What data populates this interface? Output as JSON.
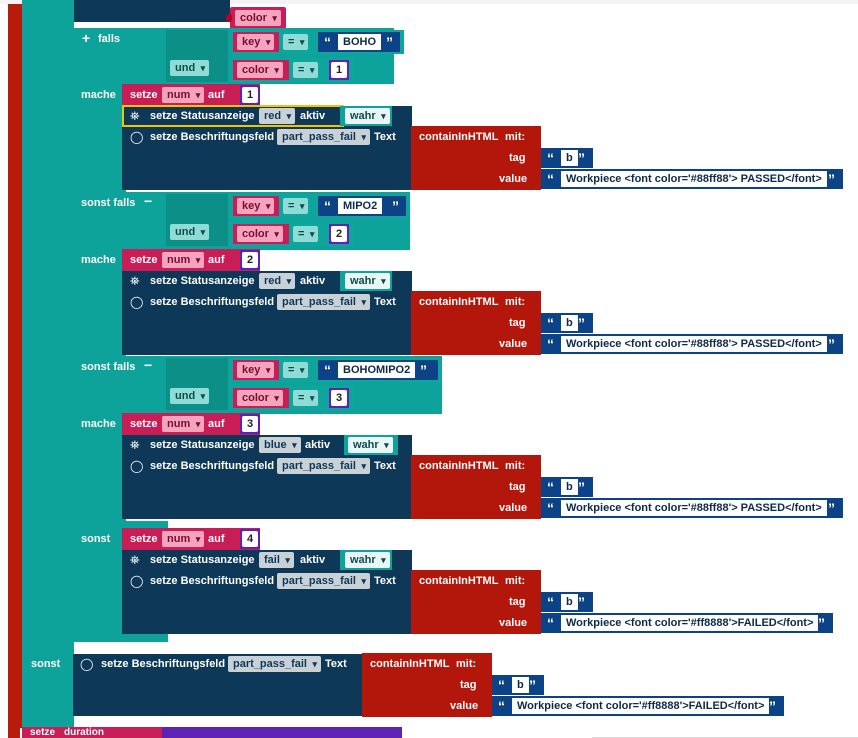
{
  "blocks": {
    "color_var": "color",
    "falls": "falls",
    "plus": "+",
    "minus": "−",
    "und": "und",
    "key_var": "key",
    "eq": "=",
    "mache": "mache",
    "setze": "setze",
    "num_var": "num",
    "auf": "auf",
    "sonst_falls": "sonst falls",
    "sonst": "sonst",
    "status_label": "setze Statusanzeige",
    "aktiv": "aktiv",
    "wahr": "wahr",
    "label_field": "setze Beschriftungsfeld",
    "field_name": "part_pass_fail",
    "text_kw": "Text",
    "contain": "containInHTML",
    "mit": "mit:",
    "tag": "tag",
    "value": "value",
    "tag_b": "b",
    "duration_var": "duration",
    "open_quote": "“",
    "close_quote": "”"
  },
  "branches": [
    {
      "key": "BOHO",
      "color": "1",
      "num": "1",
      "status": "red",
      "value": "Workpiece <font color='#88ff88'> PASSED</font>"
    },
    {
      "key": "MIPO2",
      "color": "2",
      "num": "2",
      "status": "red",
      "value": "Workpiece <font color='#88ff88'> PASSED</font>"
    },
    {
      "key": "BOHOMIPO2",
      "color": "3",
      "num": "3",
      "status": "blue",
      "value": "Workpiece <font color='#88ff88'> PASSED</font>"
    },
    {
      "num": "4",
      "status": "fail",
      "value": "Workpiece <font color='#ff8888'>FAILED</font>"
    }
  ],
  "outer_else": {
    "value": "Workpiece <font color='#ff8888'>FAILED</font>"
  },
  "colors": {
    "teal": "#0ea39a",
    "navy": "#0e3858",
    "red": "#b81a0c",
    "crimson": "#c81d57",
    "purple": "#5e22b6",
    "blue": "#0c4386"
  }
}
